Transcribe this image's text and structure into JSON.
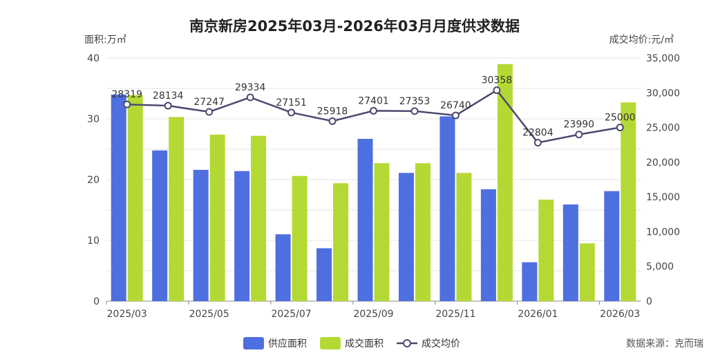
{
  "chart_data": {
    "type": "bar",
    "title": "南京新房2025年03月-2026年03月月度供求数据",
    "y_left_unit": "面积:万㎡",
    "y_right_unit": "成交均价:元/㎡",
    "source": "数据来源：克而瑞",
    "categories": [
      "2025/03",
      "2025/04",
      "2025/05",
      "2025/06",
      "2025/07",
      "2025/08",
      "2025/09",
      "2025/10",
      "2025/11",
      "2025/12",
      "2026/01",
      "2026/02",
      "2026/03"
    ],
    "x_tick_labels": [
      "2025/03",
      "2025/05",
      "2025/07",
      "2025/09",
      "2025/11",
      "2026/01",
      "2026/03"
    ],
    "y_left_ticks": [
      "0",
      "10",
      "20",
      "30",
      "40"
    ],
    "y_right_ticks": [
      "0",
      "5,000",
      "10,000",
      "15,000",
      "20,000",
      "25,000",
      "30,000",
      "35,000"
    ],
    "ylim_left": [
      0,
      40
    ],
    "ylim_right": [
      0,
      35000
    ],
    "grid": true,
    "legend_position": "bottom-center",
    "series": [
      {
        "name": "供应面积",
        "type": "bar",
        "axis": "left",
        "color": "#4e6fe0",
        "values": [
          34.0,
          24.8,
          21.6,
          21.4,
          11.0,
          8.7,
          26.7,
          21.1,
          30.4,
          18.4,
          6.4,
          15.9,
          18.1
        ]
      },
      {
        "name": "成交面积",
        "type": "bar",
        "axis": "left",
        "color": "#b5d934",
        "values": [
          33.9,
          30.3,
          27.4,
          27.2,
          20.6,
          19.4,
          22.7,
          22.7,
          21.1,
          39.0,
          16.7,
          9.5,
          32.7
        ]
      },
      {
        "name": "成交均价",
        "type": "line",
        "axis": "right",
        "color": "#4a4a70",
        "values": [
          28319,
          28134,
          27247,
          29334,
          27151,
          25918,
          27401,
          27353,
          26740,
          30358,
          22804,
          23990,
          25000
        ],
        "labels": [
          "28319",
          "28134",
          "27247",
          "29334",
          "27151",
          "25918",
          "27401",
          "27353",
          "26740",
          "30358",
          "22804",
          "23990",
          "25000"
        ]
      }
    ]
  }
}
